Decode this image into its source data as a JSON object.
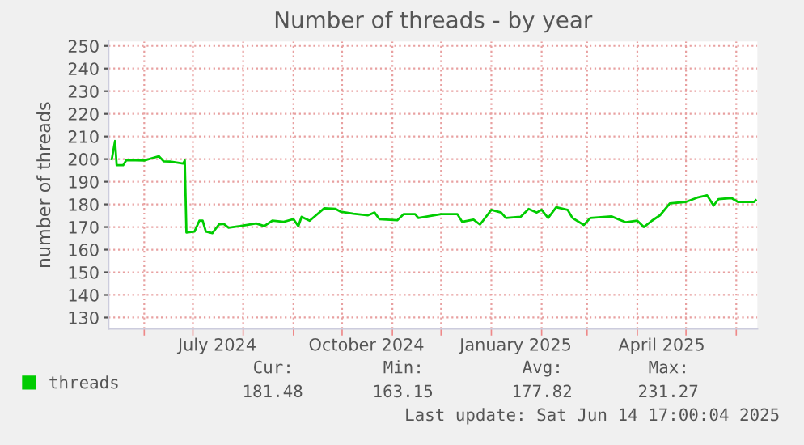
{
  "chart_data": {
    "type": "line",
    "title": "Number of threads - by year",
    "ylabel": "number of threads",
    "x": [
      "2024-05-12",
      "2024-05-14",
      "2024-05-15",
      "2024-05-19",
      "2024-05-21",
      "2024-06-01",
      "2024-06-10",
      "2024-06-13",
      "2024-06-17",
      "2024-06-25",
      "2024-06-26",
      "2024-06-27",
      "2024-07-02",
      "2024-07-05",
      "2024-07-07",
      "2024-07-09",
      "2024-07-13",
      "2024-07-17",
      "2024-07-20",
      "2024-07-23",
      "2024-07-30",
      "2024-08-09",
      "2024-08-14",
      "2024-08-19",
      "2024-08-26",
      "2024-09-01",
      "2024-09-04",
      "2024-09-06",
      "2024-09-11",
      "2024-09-20",
      "2024-09-27",
      "2024-09-30",
      "2024-10-08",
      "2024-10-17",
      "2024-10-21",
      "2024-10-24",
      "2024-11-04",
      "2024-11-08",
      "2024-11-15",
      "2024-11-17",
      "2024-12-01",
      "2024-12-11",
      "2024-12-14",
      "2024-12-21",
      "2024-12-25",
      "2025-01-01",
      "2025-01-07",
      "2025-01-10",
      "2025-01-19",
      "2025-01-24",
      "2025-01-29",
      "2025-02-01",
      "2025-02-05",
      "2025-02-10",
      "2025-02-17",
      "2025-02-20",
      "2025-02-27",
      "2025-03-03",
      "2025-03-16",
      "2025-03-25",
      "2025-04-01",
      "2025-04-05",
      "2025-04-10",
      "2025-04-15",
      "2025-04-21",
      "2025-05-01",
      "2025-05-08",
      "2025-05-14",
      "2025-05-18",
      "2025-05-21",
      "2025-05-29",
      "2025-06-02",
      "2025-06-12",
      "2025-06-13"
    ],
    "series": [
      {
        "name": "threads",
        "color": "#00cc00",
        "values": [
          200,
          208,
          197.3,
          197.3,
          199.6,
          199.4,
          201.3,
          199,
          198.9,
          198,
          199.4,
          167.6,
          168,
          172.8,
          172.8,
          168,
          167.3,
          171.1,
          171.4,
          169.7,
          170.4,
          171.6,
          170.4,
          172.8,
          172.3,
          173.5,
          170.4,
          174.5,
          172.8,
          178.3,
          178,
          176.8,
          175.9,
          175.2,
          176.4,
          173.5,
          173,
          175.7,
          175.7,
          174,
          175.7,
          175.7,
          172.3,
          173.3,
          171.1,
          177.6,
          176.4,
          174,
          174.5,
          178,
          176.4,
          177.6,
          174,
          178.7,
          177.6,
          174,
          170.9,
          174,
          174.7,
          172.1,
          172.8,
          170,
          172.8,
          175.2,
          180.4,
          181.1,
          183,
          184,
          179.5,
          182.3,
          182.8,
          181.1,
          181.1,
          181.8
        ]
      }
    ],
    "xlim": [
      "2024-05-10",
      "2025-06-14"
    ],
    "xticks": [
      {
        "value": "2024-06-01",
        "label": null
      },
      {
        "value": "2024-07-01",
        "label": null
      },
      {
        "value": "2024-07-16",
        "label": "July 2024"
      },
      {
        "value": "2024-08-01",
        "label": null
      },
      {
        "value": "2024-09-01",
        "label": null
      },
      {
        "value": "2024-10-01",
        "label": null
      },
      {
        "value": "2024-10-16",
        "label": "October 2024"
      },
      {
        "value": "2024-11-01",
        "label": null
      },
      {
        "value": "2024-12-01",
        "label": null
      },
      {
        "value": "2025-01-01",
        "label": null
      },
      {
        "value": "2025-01-16",
        "label": "January 2025"
      },
      {
        "value": "2025-02-01",
        "label": null
      },
      {
        "value": "2025-03-01",
        "label": null
      },
      {
        "value": "2025-04-01",
        "label": null
      },
      {
        "value": "2025-04-16",
        "label": "April 2025"
      },
      {
        "value": "2025-05-01",
        "label": null
      },
      {
        "value": "2025-06-01",
        "label": null
      }
    ],
    "ylim": [
      125,
      252
    ],
    "yticks": [
      130,
      140,
      150,
      160,
      170,
      180,
      190,
      200,
      210,
      220,
      230,
      240,
      250
    ],
    "grid": true,
    "legend": "bottom left",
    "annotations": [
      "Cur:",
      "Min:",
      "Avg:",
      "Max:",
      "181.48",
      "163.15",
      "177.82",
      "231.27",
      "Last update: Sat Jun 14 17:00:04 2025"
    ]
  }
}
